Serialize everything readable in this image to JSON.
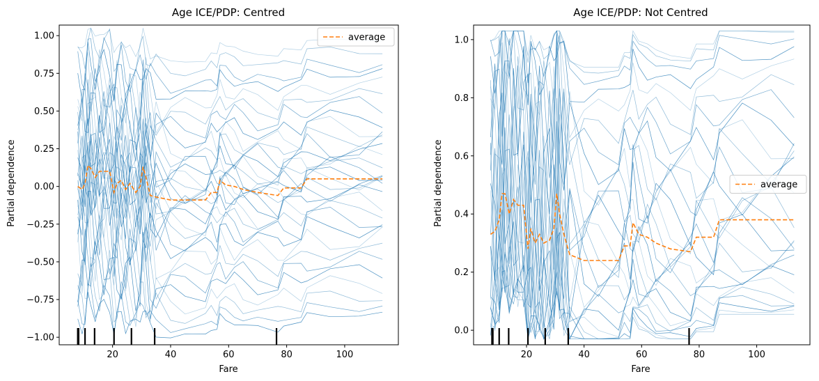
{
  "chart_data": [
    {
      "type": "line",
      "title": "Age ICE/PDP: Centred",
      "xlabel": "Fare",
      "ylabel": "Partial dependence",
      "xlim": [
        1.6,
        118.5
      ],
      "ylim": [
        -1.05,
        1.07
      ],
      "xticks": [
        20,
        40,
        60,
        80,
        100
      ],
      "xtick_labels": [
        "20",
        "40",
        "60",
        "80",
        "100"
      ],
      "yticks": [
        -1.0,
        -0.75,
        -0.5,
        -0.25,
        0.0,
        0.25,
        0.5,
        0.75,
        1.0
      ],
      "ytick_labels": [
        "−1.00",
        "−0.75",
        "−0.50",
        "−0.25",
        "0.00",
        "0.25",
        "0.50",
        "0.75",
        "1.00"
      ],
      "legend": {
        "position": "upper right",
        "entries": [
          "average"
        ]
      },
      "grid": false,
      "ice_color": "#1f77b4",
      "average_color": "#ff7f0e",
      "series": [
        {
          "name": "average",
          "style": "dashed",
          "x": [
            8.0,
            9.5,
            10.5,
            11.5,
            12.5,
            14.0,
            15.5,
            17.0,
            19.0,
            20.5,
            21.5,
            23.0,
            24.5,
            26.0,
            28.0,
            29.5,
            30.5,
            31.5,
            33.0,
            35.0,
            40.0,
            45.0,
            52.0,
            54.0,
            56.0,
            57.0,
            59.0,
            62.0,
            65.0,
            70.0,
            77.0,
            79.0,
            85.0,
            87.0,
            95.0,
            105.0,
            113.0
          ],
          "y": [
            0.0,
            -0.02,
            0.02,
            0.14,
            0.12,
            0.06,
            0.1,
            0.1,
            0.1,
            -0.04,
            0.02,
            0.04,
            -0.02,
            0.02,
            -0.04,
            0.0,
            0.13,
            0.06,
            -0.06,
            -0.07,
            -0.09,
            -0.09,
            -0.09,
            -0.04,
            -0.04,
            0.04,
            0.01,
            0.0,
            -0.02,
            -0.04,
            -0.06,
            -0.01,
            -0.01,
            0.05,
            0.05,
            0.05,
            0.05
          ]
        }
      ],
      "ice_curves": [
        {
          "offset": 0.92,
          "amp": 0.02
        },
        {
          "offset": 0.85,
          "amp": 0.1
        },
        {
          "offset": 0.75,
          "amp": 0.15
        },
        {
          "offset": 0.7,
          "amp": 0.12
        },
        {
          "offset": 0.62,
          "amp": 0.2
        },
        {
          "offset": 0.55,
          "amp": 0.18
        },
        {
          "offset": 0.48,
          "amp": 0.25
        },
        {
          "offset": 0.4,
          "amp": 0.2
        },
        {
          "offset": 0.34,
          "amp": 0.3
        },
        {
          "offset": 0.28,
          "amp": 0.22
        },
        {
          "offset": 0.22,
          "amp": 0.35
        },
        {
          "offset": 0.18,
          "amp": 0.2
        },
        {
          "offset": 0.14,
          "amp": 0.28
        },
        {
          "offset": 0.1,
          "amp": 0.15
        },
        {
          "offset": 0.06,
          "amp": 0.3
        },
        {
          "offset": 0.03,
          "amp": 0.2
        },
        {
          "offset": 0.0,
          "amp": 0.25
        },
        {
          "offset": -0.03,
          "amp": 0.18
        },
        {
          "offset": -0.06,
          "amp": 0.3
        },
        {
          "offset": -0.1,
          "amp": 0.22
        },
        {
          "offset": -0.16,
          "amp": 0.28
        },
        {
          "offset": -0.2,
          "amp": 0.2
        },
        {
          "offset": -0.26,
          "amp": 0.3
        },
        {
          "offset": -0.32,
          "amp": 0.24
        },
        {
          "offset": -0.4,
          "amp": 0.3
        },
        {
          "offset": -0.48,
          "amp": 0.2
        },
        {
          "offset": -0.55,
          "amp": 0.25
        },
        {
          "offset": -0.62,
          "amp": 0.2
        },
        {
          "offset": -0.7,
          "amp": 0.2
        },
        {
          "offset": -0.78,
          "amp": 0.15
        },
        {
          "offset": -0.85,
          "amp": 0.1
        },
        {
          "offset": -0.9,
          "amp": 0.06
        }
      ],
      "rug_x": [
        8.0,
        8.3,
        10.5,
        13.8,
        20.5,
        26.5,
        34.5,
        76.5
      ]
    },
    {
      "type": "line",
      "title": "Age ICE/PDP: Not Centred",
      "xlabel": "Fare",
      "ylabel": "Partial dependence",
      "xlim": [
        1.6,
        118.5
      ],
      "ylim": [
        -0.05,
        1.05
      ],
      "xticks": [
        20,
        40,
        60,
        80,
        100
      ],
      "xtick_labels": [
        "20",
        "40",
        "60",
        "80",
        "100"
      ],
      "yticks": [
        0.0,
        0.2,
        0.4,
        0.6,
        0.8,
        1.0
      ],
      "ytick_labels": [
        "0.0",
        "0.2",
        "0.4",
        "0.6",
        "0.8",
        "1.0"
      ],
      "legend": {
        "position": "center right",
        "entries": [
          "average"
        ]
      },
      "grid": false,
      "ice_color": "#1f77b4",
      "average_color": "#ff7f0e",
      "series": [
        {
          "name": "average",
          "style": "dashed",
          "x": [
            7.5,
            9.0,
            10.5,
            11.5,
            12.5,
            14.0,
            15.5,
            17.0,
            19.0,
            20.5,
            21.5,
            23.0,
            24.5,
            26.0,
            28.0,
            29.5,
            30.5,
            31.5,
            33.0,
            35.0,
            40.0,
            45.0,
            52.0,
            54.0,
            56.0,
            57.0,
            59.0,
            62.0,
            65.0,
            70.0,
            77.0,
            79.0,
            85.0,
            87.0,
            95.0,
            105.0,
            113.0
          ],
          "y": [
            0.33,
            0.34,
            0.38,
            0.47,
            0.47,
            0.4,
            0.45,
            0.43,
            0.43,
            0.28,
            0.35,
            0.3,
            0.33,
            0.3,
            0.31,
            0.35,
            0.47,
            0.4,
            0.33,
            0.26,
            0.24,
            0.24,
            0.24,
            0.29,
            0.29,
            0.37,
            0.33,
            0.32,
            0.3,
            0.28,
            0.27,
            0.32,
            0.32,
            0.38,
            0.38,
            0.38,
            0.38
          ]
        }
      ],
      "ice_curves": [
        {
          "offset": 0.995,
          "amp": 0.0
        },
        {
          "offset": 0.98,
          "amp": 0.02
        },
        {
          "offset": 0.95,
          "amp": 0.05
        },
        {
          "offset": 0.9,
          "amp": 0.1
        },
        {
          "offset": 0.85,
          "amp": 0.12
        },
        {
          "offset": 0.78,
          "amp": 0.18
        },
        {
          "offset": 0.72,
          "amp": 0.22
        },
        {
          "offset": 0.66,
          "amp": 0.25
        },
        {
          "offset": 0.6,
          "amp": 0.3
        },
        {
          "offset": 0.55,
          "amp": 0.32
        },
        {
          "offset": 0.5,
          "amp": 0.35
        },
        {
          "offset": 0.45,
          "amp": 0.35
        },
        {
          "offset": 0.4,
          "amp": 0.3
        },
        {
          "offset": 0.36,
          "amp": 0.32
        },
        {
          "offset": 0.32,
          "amp": 0.3
        },
        {
          "offset": 0.28,
          "amp": 0.28
        },
        {
          "offset": 0.24,
          "amp": 0.25
        },
        {
          "offset": 0.2,
          "amp": 0.22
        },
        {
          "offset": 0.16,
          "amp": 0.18
        },
        {
          "offset": 0.13,
          "amp": 0.15
        },
        {
          "offset": 0.1,
          "amp": 0.12
        },
        {
          "offset": 0.07,
          "amp": 0.1
        },
        {
          "offset": 0.05,
          "amp": 0.08
        },
        {
          "offset": 0.03,
          "amp": 0.05
        },
        {
          "offset": 0.015,
          "amp": 0.02
        },
        {
          "offset": 0.005,
          "amp": 0.0
        }
      ],
      "rug_x": [
        8.0,
        8.3,
        10.5,
        13.8,
        20.5,
        26.5,
        34.5,
        76.5
      ]
    }
  ]
}
